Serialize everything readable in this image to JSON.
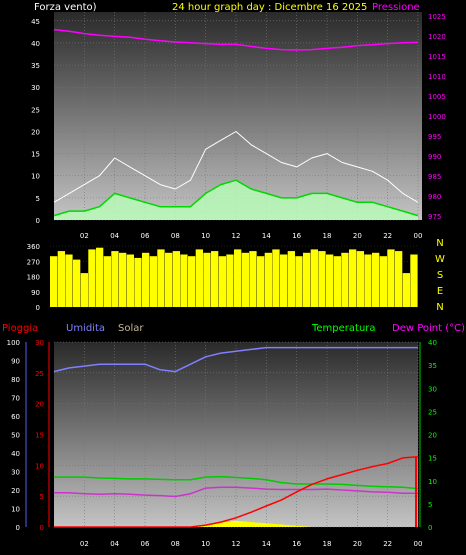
{
  "header": {
    "wind_label": "Forza vento)",
    "title": "24 hour graph day : Dicembre 16 2025",
    "pressure_label": "Pressione"
  },
  "lower_header": {
    "rain_label": "Pioggia",
    "humidity_label": "Umidita",
    "solar_label": "Solar",
    "temperature_label": "Temperatura",
    "dewpoint_label": "Dew Point (°C)"
  },
  "colors": {
    "wind_axis": "#ffffff",
    "pressure": "#ff00ff",
    "wind_gust": "#ffffff",
    "wind_avg": "#00d800",
    "wind_fill": "#b6ffb6",
    "direction": "#ffff00",
    "rain": "#ff0000",
    "humidity": "#7f7fff",
    "solar": "#ffff00",
    "temperature": "#00cc00",
    "dewpoint": "#cc33cc",
    "title": "#ffff00"
  },
  "chart_data": [
    {
      "type": "line",
      "name": "wind-pressure",
      "x_ticks": [
        "02",
        "04",
        "06",
        "08",
        "10",
        "12",
        "14",
        "16",
        "18",
        "20",
        "22",
        "00"
      ],
      "y_left_ticks": [
        "0",
        "5",
        "10",
        "15",
        "20",
        "25",
        "30",
        "35",
        "40",
        "45"
      ],
      "y_left_range": [
        0,
        47
      ],
      "y_right_ticks": [
        "975",
        "980",
        "985",
        "990",
        "995",
        "1000",
        "1005",
        "1010",
        "1015",
        "1020",
        "1025"
      ],
      "y_right_range": [
        974,
        1026
      ],
      "x_range_hours": [
        0,
        24
      ],
      "pressure": {
        "x": [
          0,
          1,
          2,
          3,
          4,
          5,
          6,
          7,
          8,
          9,
          10,
          11,
          12,
          13,
          14,
          15,
          16,
          17,
          18,
          19,
          20,
          21,
          22,
          23,
          24
        ],
        "y": [
          1021.6,
          1021.2,
          1020.6,
          1020.2,
          1019.9,
          1019.7,
          1019.2,
          1018.8,
          1018.5,
          1018.3,
          1018.1,
          1017.9,
          1017.9,
          1017.4,
          1016.9,
          1016.6,
          1016.5,
          1016.6,
          1016.9,
          1017.2,
          1017.6,
          1017.8,
          1018.1,
          1018.3,
          1018.4
        ]
      },
      "gust": {
        "x": [
          0,
          1,
          2,
          3,
          4,
          5,
          6,
          7,
          8,
          9,
          10,
          11,
          12,
          13,
          14,
          15,
          16,
          17,
          18,
          19,
          20,
          21,
          22,
          23,
          24
        ],
        "y": [
          4,
          6,
          8,
          10,
          14,
          12,
          10,
          8,
          7,
          9,
          16,
          18,
          20,
          17,
          15,
          13,
          12,
          14,
          15,
          13,
          12,
          11,
          9,
          6,
          4
        ]
      },
      "avg": {
        "x": [
          0,
          1,
          2,
          3,
          4,
          5,
          6,
          7,
          8,
          9,
          10,
          11,
          12,
          13,
          14,
          15,
          16,
          17,
          18,
          19,
          20,
          21,
          22,
          23,
          24
        ],
        "y": [
          1,
          2,
          2,
          3,
          6,
          5,
          4,
          3,
          3,
          3,
          6,
          8,
          9,
          7,
          6,
          5,
          5,
          6,
          6,
          5,
          4,
          4,
          3,
          2,
          1
        ]
      }
    },
    {
      "type": "bar",
      "name": "wind-direction",
      "x_range_hours": [
        0,
        24
      ],
      "y_left_ticks": [
        "0",
        "90",
        "180",
        "270",
        "360"
      ],
      "y_range": [
        0,
        360
      ],
      "y_right_labels": [
        "N",
        "W",
        "S",
        "E",
        "N"
      ],
      "hours": [
        0,
        0.5,
        1,
        1.5,
        2,
        2.5,
        3,
        3.5,
        4,
        4.5,
        5,
        5.5,
        6,
        6.5,
        7,
        7.5,
        8,
        8.5,
        9,
        9.5,
        10,
        10.5,
        11,
        11.5,
        12,
        12.5,
        13,
        13.5,
        14,
        14.5,
        15,
        15.5,
        16,
        16.5,
        17,
        17.5,
        18,
        18.5,
        19,
        19.5,
        20,
        20.5,
        21,
        21.5,
        22,
        22.5,
        23,
        23.5
      ],
      "values": [
        300,
        330,
        310,
        280,
        200,
        340,
        350,
        300,
        330,
        320,
        310,
        290,
        320,
        300,
        340,
        320,
        330,
        310,
        300,
        340,
        320,
        330,
        300,
        310,
        340,
        320,
        330,
        300,
        320,
        340,
        310,
        330,
        300,
        320,
        340,
        330,
        310,
        300,
        320,
        340,
        330,
        310,
        320,
        300,
        340,
        330,
        200,
        310
      ]
    },
    {
      "type": "line",
      "name": "rain-humidity-temperature",
      "x_ticks": [
        "02",
        "04",
        "06",
        "08",
        "10",
        "12",
        "14",
        "16",
        "18",
        "20",
        "22",
        "00"
      ],
      "x_range_hours": [
        0,
        24
      ],
      "humidity_ticks": [
        "0",
        "10",
        "20",
        "30",
        "40",
        "50",
        "60",
        "70",
        "80",
        "90",
        "100"
      ],
      "humidity_range": [
        0,
        100
      ],
      "rain_ticks": [
        "0",
        "5",
        "10",
        "15",
        "20",
        "25",
        "30"
      ],
      "rain_range": [
        0,
        30
      ],
      "temperature_ticks": [
        "0",
        "5",
        "10",
        "15",
        "20",
        "25",
        "30",
        "35",
        "40"
      ],
      "temperature_range": [
        0,
        40
      ],
      "humidity": {
        "x": [
          0,
          1,
          2,
          3,
          4,
          5,
          6,
          7,
          8,
          9,
          10,
          11,
          12,
          13,
          14,
          15,
          16,
          17,
          18,
          19,
          20,
          21,
          22,
          23,
          24
        ],
        "y": [
          84,
          86,
          87,
          88,
          88,
          88,
          88,
          85,
          84,
          88,
          92,
          94,
          95,
          96,
          97,
          97,
          97,
          97,
          97,
          97,
          97,
          97,
          97,
          97,
          97
        ]
      },
      "temperature": {
        "x": [
          0,
          1,
          2,
          3,
          4,
          5,
          6,
          7,
          8,
          9,
          10,
          11,
          12,
          13,
          14,
          15,
          16,
          17,
          18,
          19,
          20,
          21,
          22,
          23,
          24
        ],
        "y": [
          10.8,
          10.8,
          10.8,
          10.6,
          10.5,
          10.4,
          10.4,
          10.3,
          10.2,
          10.2,
          10.8,
          10.9,
          10.7,
          10.5,
          10.2,
          9.6,
          9.3,
          9.3,
          9.3,
          9.2,
          9.0,
          8.8,
          8.7,
          8.6,
          8.3
        ]
      },
      "dewpoint": {
        "x": [
          0,
          1,
          2,
          3,
          4,
          5,
          6,
          7,
          8,
          9,
          10,
          11,
          12,
          13,
          14,
          15,
          16,
          17,
          18,
          19,
          20,
          21,
          22,
          23,
          24
        ],
        "y": [
          7.4,
          7.4,
          7.2,
          7.1,
          7.2,
          7.1,
          6.9,
          6.8,
          6.6,
          7.2,
          8.4,
          8.6,
          8.6,
          8.4,
          8.2,
          8.1,
          8.1,
          8.1,
          8.2,
          8.0,
          7.8,
          7.6,
          7.5,
          7.3,
          7.3
        ]
      },
      "rain": {
        "x": [
          0,
          9,
          10,
          11,
          12,
          13,
          14,
          15,
          16,
          17,
          18,
          19,
          20,
          21,
          22,
          23,
          23.99
        ],
        "y": [
          0,
          0,
          0.3,
          0.8,
          1.5,
          2.4,
          3.4,
          4.4,
          5.7,
          6.9,
          7.8,
          8.5,
          9.2,
          9.8,
          10.3,
          11.2,
          11.4
        ]
      },
      "solar": {
        "x": [
          0,
          9,
          10,
          11,
          12,
          13,
          14,
          15,
          16,
          17,
          24
        ],
        "y": [
          0,
          0,
          0.4,
          0.7,
          1.0,
          0.8,
          0.6,
          0.4,
          0.2,
          0,
          0
        ]
      }
    }
  ]
}
